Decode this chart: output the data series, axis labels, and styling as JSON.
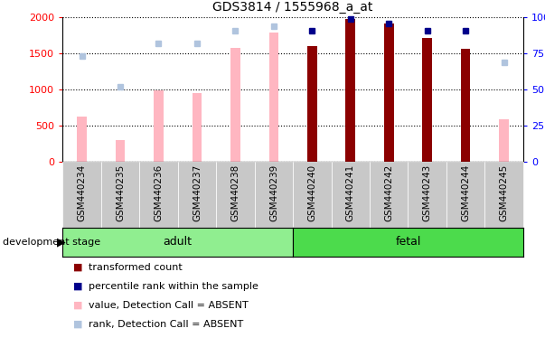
{
  "title": "GDS3814 / 1555968_a_at",
  "samples": [
    "GSM440234",
    "GSM440235",
    "GSM440236",
    "GSM440237",
    "GSM440238",
    "GSM440239",
    "GSM440240",
    "GSM440241",
    "GSM440242",
    "GSM440243",
    "GSM440244",
    "GSM440245"
  ],
  "adult_count": 6,
  "fetal_count": 6,
  "bar_values": [
    620,
    300,
    990,
    950,
    1570,
    1790,
    1600,
    1980,
    1920,
    1720,
    1560,
    580
  ],
  "bar_absent": [
    true,
    true,
    true,
    true,
    true,
    true,
    false,
    false,
    false,
    false,
    false,
    true
  ],
  "rank_values": [
    73,
    52,
    82,
    82,
    91,
    94,
    91,
    99,
    96,
    91,
    91,
    69
  ],
  "rank_absent": [
    true,
    true,
    true,
    true,
    true,
    true,
    false,
    false,
    false,
    false,
    false,
    true
  ],
  "ylim_left": [
    0,
    2000
  ],
  "ylim_right": [
    0,
    100
  ],
  "yticks_left": [
    0,
    500,
    1000,
    1500,
    2000
  ],
  "yticks_right": [
    0,
    25,
    50,
    75,
    100
  ],
  "bar_color_present": "#8B0000",
  "bar_color_absent": "#FFB6C1",
  "rank_color_present": "#00008B",
  "rank_color_absent": "#B0C4DE",
  "adult_color": "#90EE90",
  "fetal_color": "#4CDB4C",
  "xtick_bg_color": "#C8C8C8",
  "stage_label": "development stage",
  "legend_items": [
    {
      "label": "transformed count",
      "color": "#8B0000"
    },
    {
      "label": "percentile rank within the sample",
      "color": "#00008B"
    },
    {
      "label": "value, Detection Call = ABSENT",
      "color": "#FFB6C1"
    },
    {
      "label": "rank, Detection Call = ABSENT",
      "color": "#B0C4DE"
    }
  ],
  "fig_width": 6.03,
  "fig_height": 3.84,
  "dpi": 100
}
